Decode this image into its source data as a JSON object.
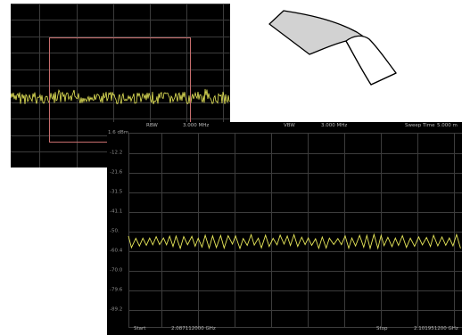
{
  "instrument": {
    "params": {
      "rbw_label": "RBW",
      "rbw_value": "3.000 MHz",
      "vbw_label": "VBW",
      "vbw_value": "3.000 MHz",
      "sweep_label": "Sweep Time",
      "sweep_value": "5.000 m"
    },
    "ref_level": "1.6 dBm",
    "y_ticks": [
      "-12.2",
      "-21.6",
      "-31.5",
      "-41.1",
      "-50.",
      "-60.4",
      "-70.0",
      "-79.6",
      "-89.2"
    ],
    "start_label": "Start",
    "start_value": "2.087112000 GHz",
    "stop_label": "Stop",
    "stop_value": "2.101951200 GHz"
  },
  "colors": {
    "screen_bg": "#000000",
    "grid": "#3c3c3c",
    "trace": "#e8e85a",
    "zoom_box": "#c86e6e",
    "label_text": "#b9b9b9"
  },
  "icons": {
    "page_curl": "page-curl-icon"
  }
}
